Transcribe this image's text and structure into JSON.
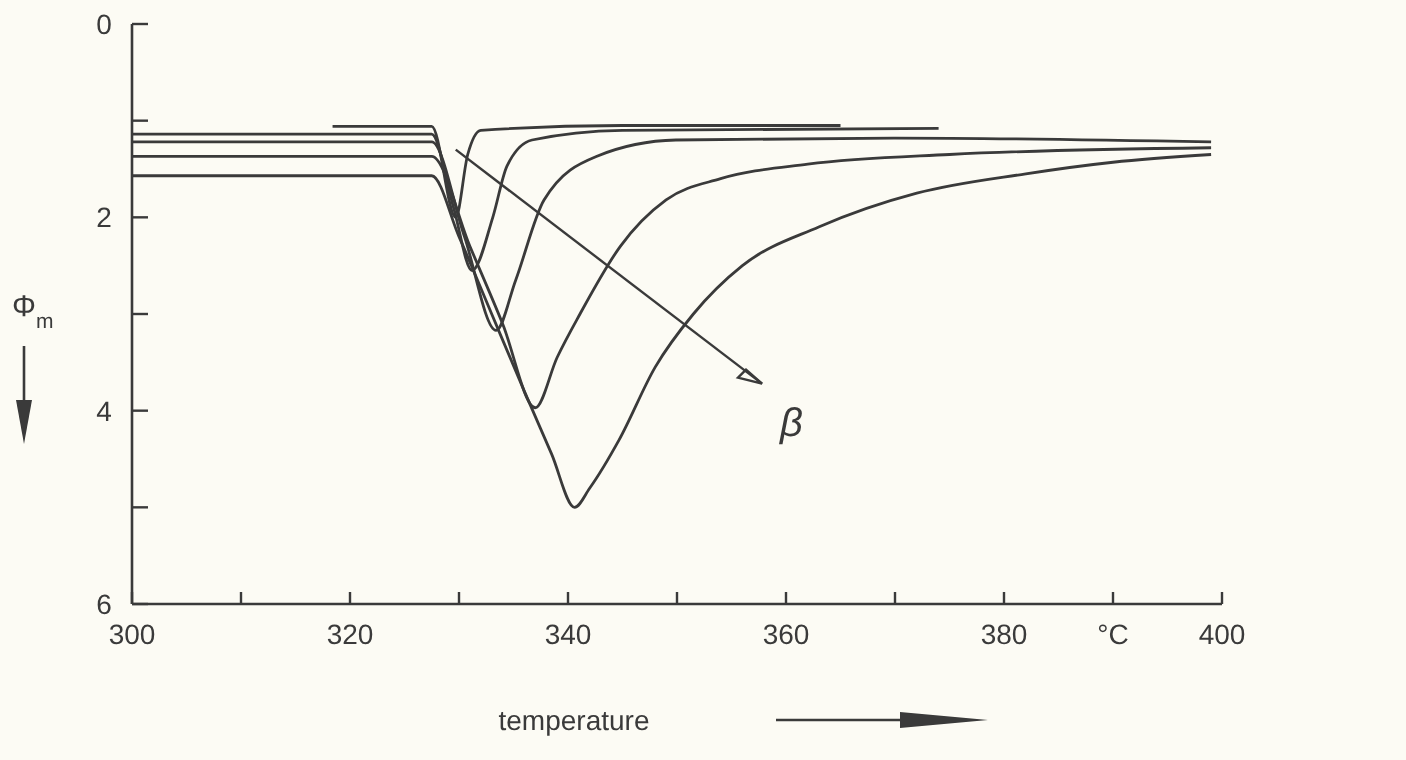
{
  "chart_data": {
    "type": "line",
    "xlabel": "temperature",
    "ylabel": "Φ$_{m}$",
    "xlim": [
      300,
      400
    ],
    "ylim": [
      6,
      0
    ],
    "xticks": [
      300,
      {
        "value": 310,
        "label": null
      },
      320,
      {
        "value": 330,
        "label": null
      },
      340,
      {
        "value": 350,
        "label": null
      },
      360,
      {
        "value": 370,
        "label": null
      },
      380,
      {
        "value": 390,
        "label": "°C"
      },
      400
    ],
    "yticks": [
      0,
      {
        "value": 1,
        "label": null
      },
      2,
      {
        "value": 3,
        "label": null
      },
      4,
      {
        "value": 5,
        "label": null
      },
      6
    ],
    "line_style": "solid",
    "annotations": [
      "β"
    ],
    "series": [
      {
        "color": "#3a3a3a",
        "x": [
          300,
          327.5,
          330,
          333,
          336,
          338.5,
          340.6,
          342,
          344.7,
          348,
          351.5,
          356,
          363,
          372,
          382,
          390,
          399
        ],
        "values": [
          1.57,
          1.57,
          2.2,
          3.0,
          3.8,
          4.45,
          5.0,
          4.8,
          4.3,
          3.55,
          3.0,
          2.5,
          2.1,
          1.75,
          1.55,
          1.43,
          1.35
        ]
      },
      {
        "color": "#3a3a3a",
        "x": [
          300,
          327.5,
          331,
          334,
          337,
          339,
          341.1,
          344.8,
          349,
          354,
          362,
          375,
          399
        ],
        "values": [
          1.37,
          1.37,
          2.3,
          3.1,
          3.97,
          3.45,
          3.0,
          2.3,
          1.82,
          1.6,
          1.45,
          1.35,
          1.28
        ]
      },
      {
        "color": "#3a3a3a",
        "x": [
          300,
          327.5,
          330.5,
          333.4,
          335.2,
          337.8,
          342.6,
          349.9,
          370,
          399
        ],
        "values": [
          1.22,
          1.22,
          2.2,
          3.17,
          2.65,
          1.82,
          1.37,
          1.2,
          1.18,
          1.22
        ]
      },
      {
        "color": "#3a3a3a",
        "x": [
          300,
          327.5,
          329.5,
          331.2,
          333.1,
          334.4,
          336.7,
          345,
          374
        ],
        "values": [
          1.14,
          1.14,
          1.9,
          2.55,
          2.0,
          1.47,
          1.2,
          1.1,
          1.08
        ]
      },
      {
        "color": "#3a3a3a",
        "x": [
          318.4,
          327.5,
          329.7,
          330.8,
          332,
          345,
          365
        ],
        "values": [
          1.06,
          1.06,
          2.0,
          1.35,
          1.1,
          1.05,
          1.05
        ]
      }
    ]
  }
}
